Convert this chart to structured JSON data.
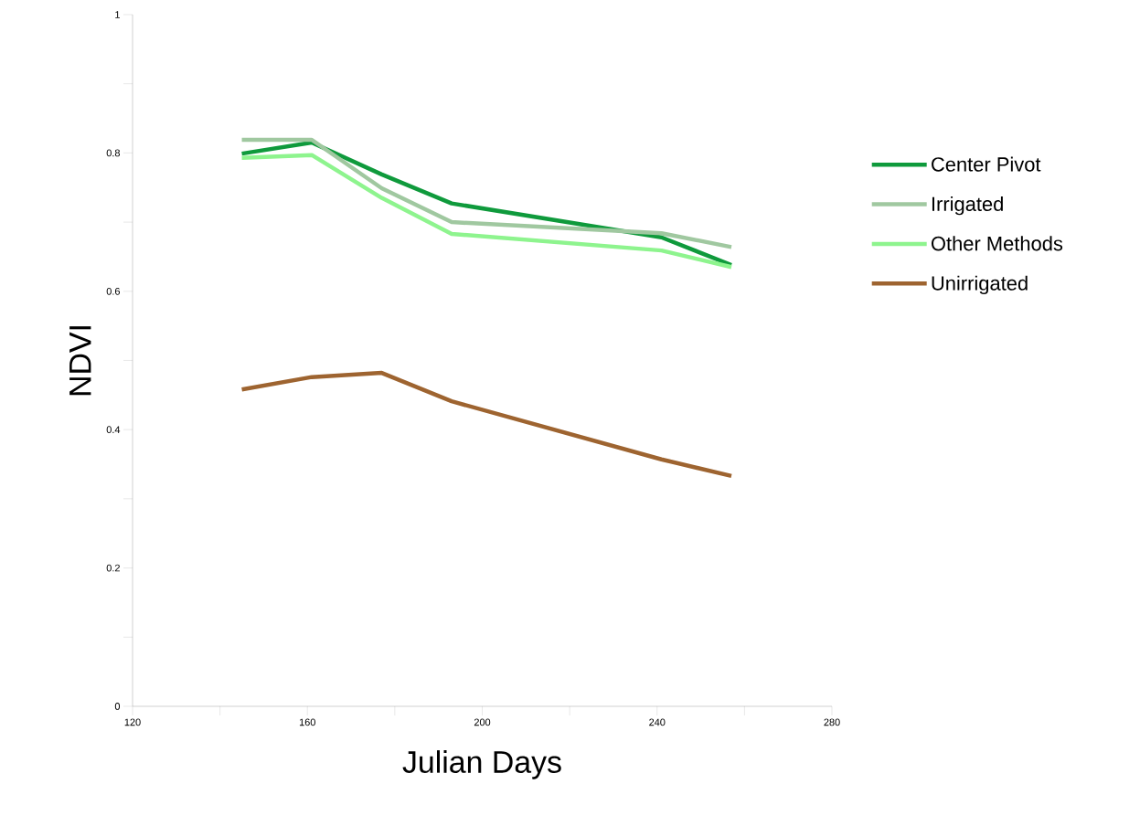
{
  "chart_data": {
    "type": "line",
    "xlabel": "Julian Days",
    "ylabel": "NDVI",
    "x": [
      145,
      161,
      177,
      193,
      241,
      257
    ],
    "series": [
      {
        "name": "Center Pivot",
        "color": "#0f9a3c",
        "values": [
          0.799,
          0.815,
          0.769,
          0.727,
          0.678,
          0.638
        ]
      },
      {
        "name": "Irrigated",
        "color": "#a0c8a0",
        "values": [
          0.819,
          0.819,
          0.749,
          0.7,
          0.684,
          0.664
        ]
      },
      {
        "name": "Other Methods",
        "color": "#8ef48e",
        "values": [
          0.793,
          0.797,
          0.735,
          0.683,
          0.659,
          0.635
        ]
      },
      {
        "name": "Unirrigated",
        "color": "#9e6430",
        "values": [
          0.458,
          0.476,
          0.482,
          0.441,
          0.357,
          0.333
        ]
      }
    ],
    "xlim": [
      120,
      280
    ],
    "ylim": [
      0,
      1
    ],
    "xticks": [
      120,
      {
        "value": 140,
        "label": null
      },
      160,
      {
        "value": 180,
        "label": null
      },
      200,
      {
        "value": 220,
        "label": null
      },
      240,
      {
        "value": 260,
        "label": null
      },
      280
    ],
    "yticks": [
      0,
      {
        "value": 0.1,
        "label": null
      },
      0.2,
      {
        "value": 0.3,
        "label": null
      },
      0.4,
      {
        "value": 0.5,
        "label": null
      },
      0.6,
      {
        "value": 0.7,
        "label": null
      },
      0.8,
      {
        "value": 0.9,
        "label": null
      },
      1
    ],
    "legend": "right",
    "grid": false,
    "marker": "none",
    "line_style": "solid"
  }
}
